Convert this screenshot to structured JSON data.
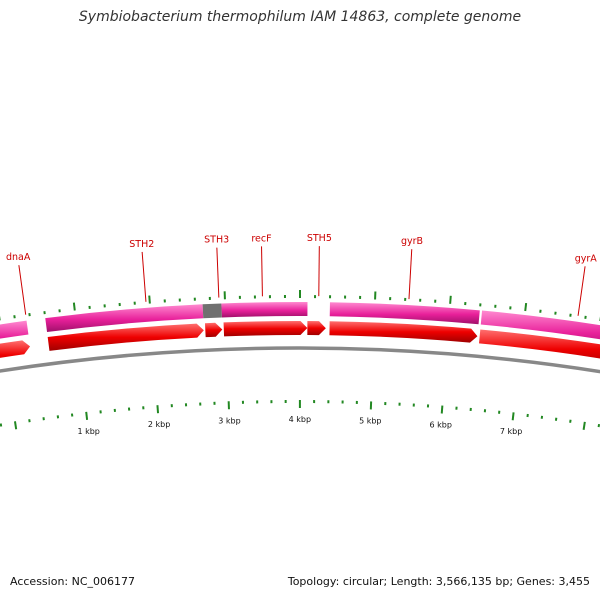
{
  "title": "Symbiobacterium thermophilum IAM 14863, complete genome",
  "footer": {
    "accession": "Accession: NC_006177",
    "stats": "Topology: circular; Length: 3,566,135 bp; Genes: 3,455"
  },
  "colors": {
    "feature_band": "#e8209a",
    "gene_arrow": "#ee0000",
    "gap_feature": "#707070",
    "backbone": "#888888",
    "tick": "#228822",
    "label": "#cc0000"
  },
  "scale": {
    "unit": "kbp",
    "marks": [
      {
        "kb": 1,
        "label": "1 kbp"
      },
      {
        "kb": 2,
        "label": "2 kbp"
      },
      {
        "kb": 3,
        "label": "3 kbp"
      },
      {
        "kb": 4,
        "label": "4 kbp"
      },
      {
        "kb": 5,
        "label": "5 kbp"
      },
      {
        "kb": 6,
        "label": "6 kbp"
      },
      {
        "kb": 7,
        "label": "7 kbp"
      }
    ]
  },
  "genes": [
    {
      "label": "dnaA",
      "kb": 0.35
    },
    {
      "label": "STH2",
      "kb": 1.95
    },
    {
      "label": "STH3",
      "kb": 2.92
    },
    {
      "label": "recF",
      "kb": 3.5
    },
    {
      "label": "STH5",
      "kb": 4.25
    },
    {
      "label": "gyrB",
      "kb": 5.45
    },
    {
      "label": "gyrA",
      "kb": 7.7
    }
  ],
  "feature_bands": [
    {
      "start_kb": -1.0,
      "end_kb": 0.35
    },
    {
      "start_kb": 0.6,
      "end_kb": 2.7
    },
    {
      "start_kb": 2.95,
      "end_kb": 4.1
    },
    {
      "start_kb": 4.4,
      "end_kb": 6.4
    },
    {
      "start_kb": 6.43,
      "end_kb": 9.0
    }
  ],
  "gap_features": [
    {
      "start_kb": 2.7,
      "end_kb": 2.95
    }
  ],
  "gene_arrows": [
    {
      "start_kb": -1.0,
      "end_kb": 0.35
    },
    {
      "start_kb": 0.6,
      "end_kb": 2.7
    },
    {
      "start_kb": 2.72,
      "end_kb": 2.95
    },
    {
      "start_kb": 2.97,
      "end_kb": 4.1
    },
    {
      "start_kb": 4.1,
      "end_kb": 4.35
    },
    {
      "start_kb": 4.4,
      "end_kb": 6.4
    },
    {
      "start_kb": 6.43,
      "end_kb": 9.0
    }
  ]
}
